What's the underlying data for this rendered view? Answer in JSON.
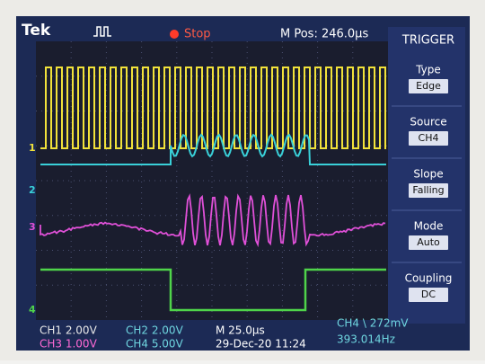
{
  "header": {
    "brand": "Tek",
    "status": "Stop",
    "position": "M Pos: 246.0µs"
  },
  "menu": {
    "title": "TRIGGER",
    "items": [
      {
        "label": "Type",
        "value": "Edge"
      },
      {
        "label": "Source",
        "value": "CH4"
      },
      {
        "label": "Slope",
        "value": "Falling"
      },
      {
        "label": "Mode",
        "value": "Auto"
      },
      {
        "label": "Coupling",
        "value": "DC"
      }
    ]
  },
  "channel_markers": [
    "1",
    "2",
    "3",
    "4"
  ],
  "status_bar": {
    "ch1": "CH1 2.00V",
    "ch2": "CH2 2.00V",
    "timebase": "M 25.0µs",
    "trigger": "CH4 \\ 272mV",
    "ch3": "CH3 1.00V",
    "ch4": "CH4 5.00V",
    "datetime": "29-Dec-20 11:24",
    "frequency": "393.014Hz"
  }
}
